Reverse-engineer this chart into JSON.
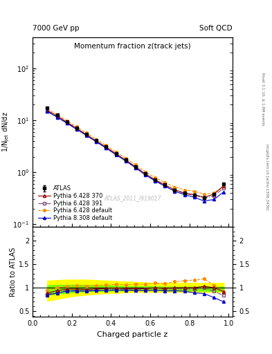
{
  "title_top_left": "7000 GeV pp",
  "title_top_right": "Soft QCD",
  "main_title": "Momentum fraction z(track jets)",
  "ylabel_main": "1/N$_\\mathrm{jet}$ dN/dz",
  "ylabel_ratio": "Ratio to ATLAS",
  "xlabel": "Charged particle z",
  "right_label_top": "Rivet 3.1.10, ≥ 1.6M events",
  "right_label_bottom": "mcplots.cern.ch [arXiv:1306.3436]",
  "watermark": "ATLAS_2011_I919017",
  "ylim_main": [
    0.09,
    400
  ],
  "ylim_ratio": [
    0.38,
    2.3
  ],
  "xlim": [
    0.0,
    1.02
  ],
  "x_data": [
    0.075,
    0.125,
    0.175,
    0.225,
    0.275,
    0.325,
    0.375,
    0.425,
    0.475,
    0.525,
    0.575,
    0.625,
    0.675,
    0.725,
    0.775,
    0.825,
    0.875,
    0.925,
    0.975
  ],
  "atlas_y": [
    17.5,
    13.0,
    9.5,
    7.2,
    5.5,
    4.1,
    3.1,
    2.3,
    1.75,
    1.3,
    0.95,
    0.72,
    0.58,
    0.46,
    0.4,
    0.37,
    0.32,
    0.38,
    0.6
  ],
  "atlas_yerr": [
    0.5,
    0.4,
    0.3,
    0.2,
    0.15,
    0.12,
    0.09,
    0.07,
    0.05,
    0.04,
    0.03,
    0.025,
    0.02,
    0.018,
    0.016,
    0.015,
    0.013,
    0.016,
    0.025
  ],
  "p6_370_y": [
    15.5,
    12.2,
    9.2,
    7.0,
    5.3,
    4.0,
    3.05,
    2.28,
    1.72,
    1.28,
    0.93,
    0.72,
    0.57,
    0.46,
    0.4,
    0.37,
    0.33,
    0.38,
    0.55
  ],
  "p6_391_y": [
    15.0,
    11.8,
    9.0,
    6.8,
    5.2,
    3.9,
    2.98,
    2.23,
    1.68,
    1.25,
    0.92,
    0.7,
    0.56,
    0.45,
    0.39,
    0.36,
    0.32,
    0.35,
    0.5
  ],
  "p6_def_y": [
    16.5,
    13.0,
    9.8,
    7.5,
    5.7,
    4.3,
    3.28,
    2.46,
    1.86,
    1.4,
    1.02,
    0.79,
    0.63,
    0.52,
    0.46,
    0.43,
    0.38,
    0.4,
    0.55
  ],
  "p8_def_y": [
    14.8,
    11.5,
    8.8,
    6.7,
    5.1,
    3.85,
    2.92,
    2.18,
    1.65,
    1.22,
    0.89,
    0.68,
    0.54,
    0.43,
    0.37,
    0.33,
    0.28,
    0.3,
    0.42
  ],
  "color_atlas": "#000000",
  "color_p6_370": "#8B0000",
  "color_p6_391": "#7B4F7B",
  "color_p6_def": "#FF8C00",
  "color_p8_def": "#0000CD",
  "color_band_yellow": "#FFFF00",
  "color_band_green": "#7CFC00",
  "band_yellow_lo": [
    0.72,
    0.76,
    0.8,
    0.83,
    0.85,
    0.87,
    0.88,
    0.89,
    0.9,
    0.91,
    0.91,
    0.91,
    0.91,
    0.91,
    0.91,
    0.91,
    0.91,
    0.91,
    0.91
  ],
  "band_yellow_hi": [
    1.15,
    1.16,
    1.17,
    1.17,
    1.17,
    1.16,
    1.15,
    1.14,
    1.13,
    1.12,
    1.11,
    1.1,
    1.1,
    1.1,
    1.1,
    1.1,
    1.1,
    1.1,
    1.1
  ],
  "band_green_lo": [
    0.85,
    0.87,
    0.89,
    0.91,
    0.92,
    0.93,
    0.93,
    0.94,
    0.94,
    0.95,
    0.95,
    0.95,
    0.94,
    0.94,
    0.94,
    0.94,
    0.93,
    0.93,
    0.93
  ],
  "band_green_hi": [
    1.05,
    1.06,
    1.06,
    1.06,
    1.06,
    1.05,
    1.05,
    1.04,
    1.04,
    1.03,
    1.03,
    1.03,
    1.02,
    1.02,
    1.02,
    1.02,
    1.02,
    1.02,
    1.02
  ],
  "legend_order": [
    "ATLAS",
    "Pythia 6.428 370",
    "Pythia 6.428 391",
    "Pythia 6.428 default",
    "Pythia 8.308 default"
  ],
  "ms": 3.0,
  "lw": 0.8
}
